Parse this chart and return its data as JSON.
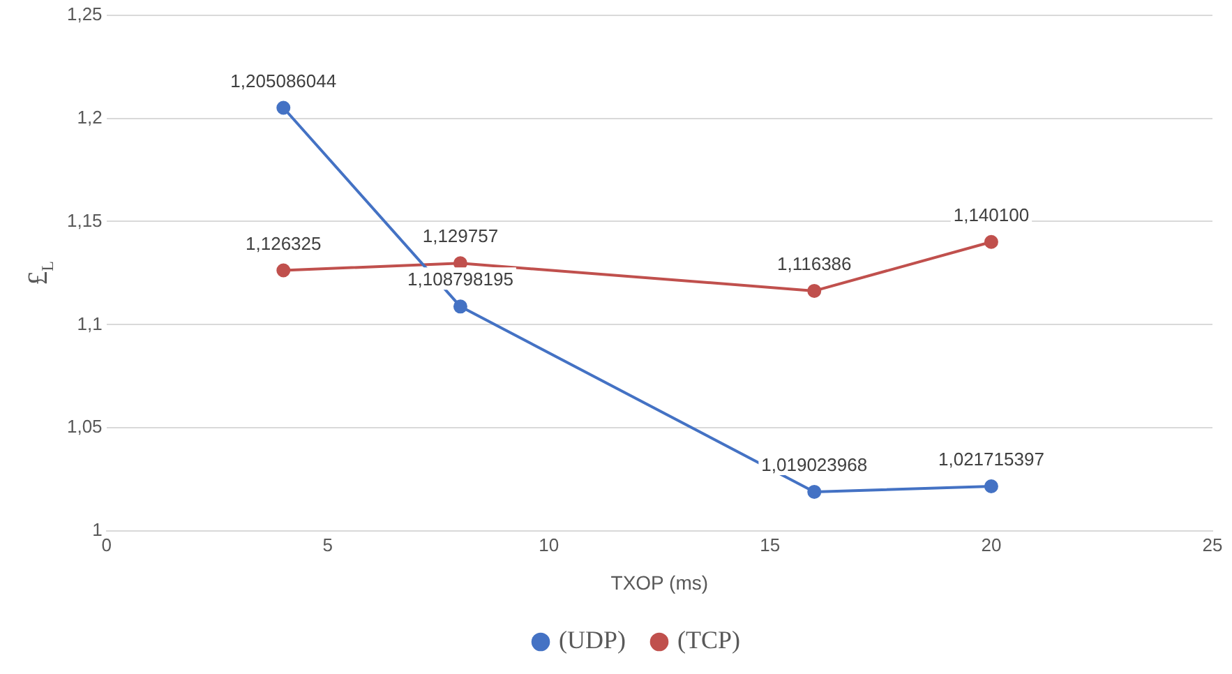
{
  "chart_data": {
    "type": "line",
    "xlabel": "TXOP (ms)",
    "ylabel": "£$_{L}$",
    "xlim": [
      0,
      25
    ],
    "xticks": [
      0,
      5,
      10,
      15,
      20,
      25
    ],
    "ylim": [
      1,
      1.25
    ],
    "yticks": [
      {
        "value": 1,
        "label": "1"
      },
      {
        "value": 1.05,
        "label": "1,05"
      },
      {
        "value": 1.1,
        "label": "1,1"
      },
      {
        "value": 1.15,
        "label": "1,15"
      },
      {
        "value": 1.2,
        "label": "1,2"
      },
      {
        "value": 1.25,
        "label": "1,25"
      }
    ],
    "grid": "y",
    "legend": "bottom",
    "marker": "circle",
    "line_style": "solid",
    "series": [
      {
        "name": "(UDP)",
        "color": "#4472c4",
        "x": [
          4,
          8,
          16,
          20
        ],
        "values": [
          1.205086044,
          1.108798195,
          1.019023968,
          1.021715397
        ],
        "value_labels": [
          "1,205086044",
          "1,108798195",
          "1,019023968",
          "1,021715397"
        ]
      },
      {
        "name": "(TCP)",
        "color": "#c0504d",
        "x": [
          4,
          8,
          16,
          20
        ],
        "values": [
          1.126325,
          1.129757,
          1.116386,
          1.1401
        ],
        "value_labels": [
          "1,126325",
          "1,129757",
          "1,116386",
          "1,140100"
        ]
      }
    ]
  }
}
